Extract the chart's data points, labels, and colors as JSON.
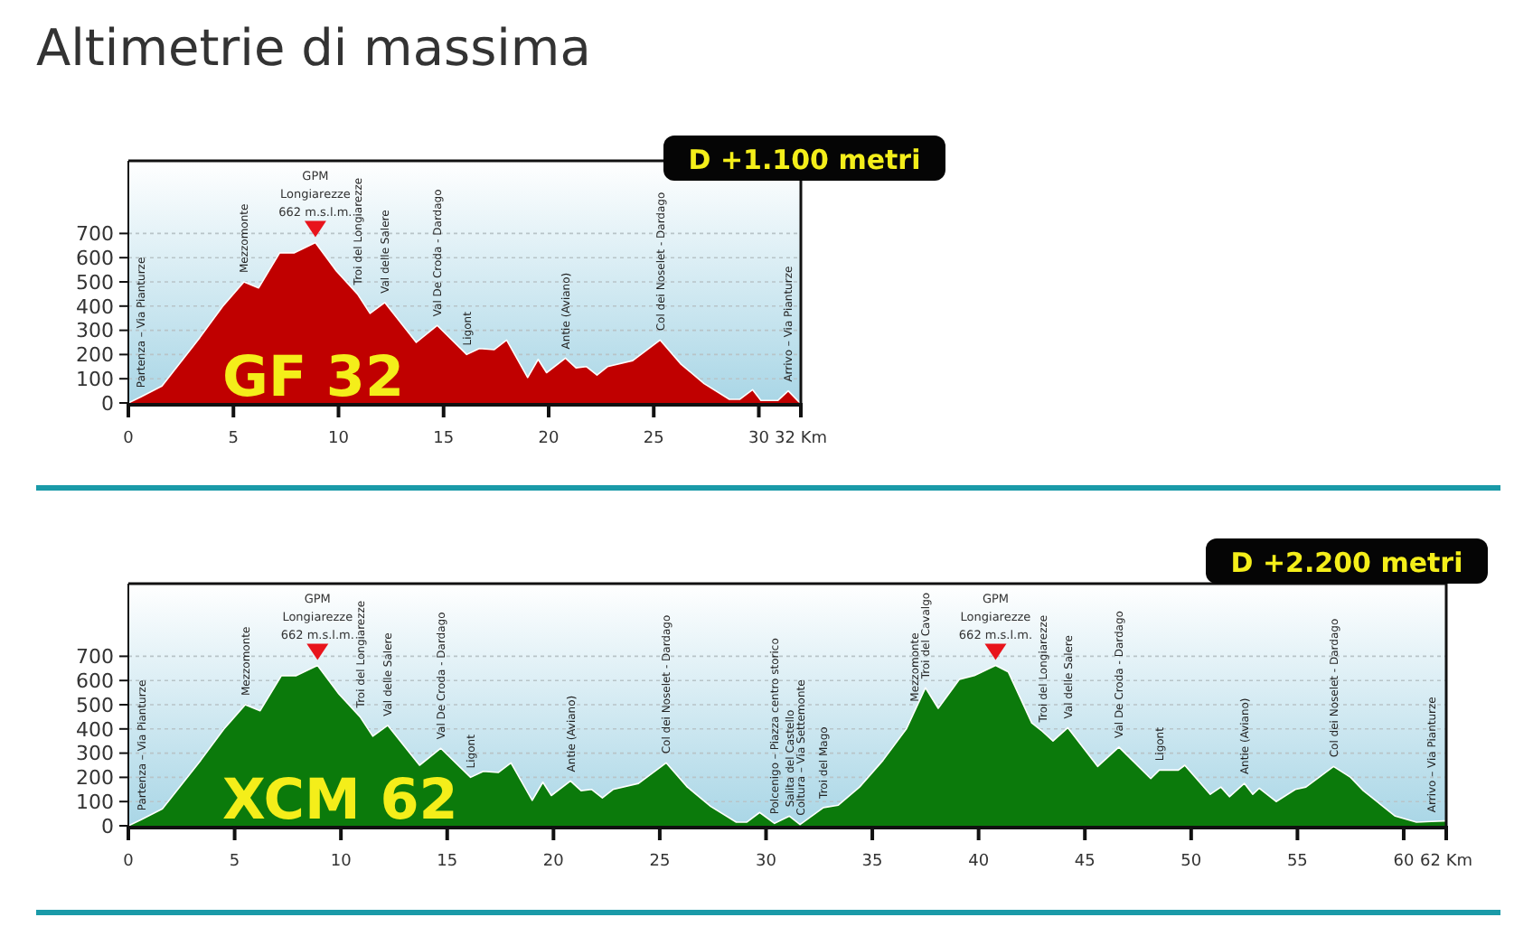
{
  "chart_data": [
    {
      "type": "area",
      "title": "Altimetrie di massima",
      "color": "#c00000",
      "x": [
        0,
        0.6,
        1.6,
        3.4,
        4.5,
        5.5,
        6.2,
        7.2,
        7.9,
        8.9,
        9.9,
        10.9,
        11.5,
        12.2,
        13.7,
        14.7,
        16.1,
        16.7,
        17.4,
        18,
        19,
        19.5,
        19.9,
        20.8,
        21.3,
        21.8,
        22.3,
        22.8,
        24,
        25.3,
        26.3,
        27.4,
        28.6,
        29.1,
        29.7,
        30.1,
        30.9,
        31.4,
        31.9,
        32
      ],
      "values": [
        0,
        25,
        70,
        270,
        400,
        500,
        475,
        620,
        620,
        662,
        545,
        450,
        370,
        415,
        250,
        320,
        200,
        225,
        220,
        260,
        105,
        180,
        125,
        185,
        145,
        150,
        115,
        150,
        175,
        260,
        160,
        80,
        15,
        15,
        55,
        10,
        10,
        50,
        5,
        0
      ],
      "xlim": [
        0,
        32
      ],
      "xticks": [
        0,
        5,
        10,
        15,
        20,
        25,
        30,
        {
          "value": 32,
          "label": "32 Km"
        }
      ],
      "ylim": [
        0,
        1000
      ],
      "yticks": [
        0,
        100,
        200,
        300,
        400,
        500,
        600,
        700
      ],
      "grid": "y",
      "annotations": [
        "D +1.100 metri",
        "GF 32",
        {
          "text": "Partenza – Via Pianturze",
          "x": 0.6,
          "y": 25
        },
        {
          "text": "Mezzomonte",
          "x": 5.5,
          "y": 500
        },
        {
          "text": "GPM\nLongiarezze\n662 m.s.l.m.",
          "x": 8.9,
          "y": 662
        },
        {
          "text": "Troi del Longiarezze",
          "x": 10.9,
          "y": 450
        },
        {
          "text": "Val delle Salere",
          "x": 12.2,
          "y": 415
        },
        {
          "text": "Val De Croda - Dardago",
          "x": 14.7,
          "y": 320
        },
        {
          "text": "Ligont",
          "x": 16.1,
          "y": 200
        },
        {
          "text": "Antie (Aviano)",
          "x": 20.8,
          "y": 185
        },
        {
          "text": "Col dei Noselet - Dardago",
          "x": 25.3,
          "y": 260
        },
        {
          "text": "Arrivo – Via Pianturze",
          "x": 31.4,
          "y": 50
        }
      ]
    },
    {
      "type": "area",
      "color": "#0b7a0b",
      "x": [
        0,
        0.6,
        1.6,
        3.4,
        4.5,
        5.5,
        6.2,
        7.2,
        7.9,
        8.9,
        9.9,
        10.9,
        11.5,
        12.2,
        13.7,
        14.7,
        16.1,
        16.7,
        17.4,
        18,
        19,
        19.5,
        19.9,
        20.8,
        21.3,
        21.8,
        22.3,
        22.8,
        24,
        25.3,
        26.3,
        27.4,
        28.6,
        29.1,
        29.7,
        30.4,
        31.1,
        31.6,
        32.7,
        33.4,
        34.4,
        35.5,
        36.6,
        37.0,
        37.5,
        38.1,
        39.1,
        39.8,
        40.8,
        41.4,
        42.5,
        43.0,
        43.5,
        44.2,
        45.6,
        46.6,
        48.1,
        48.5,
        49.4,
        49.7,
        50.9,
        51.4,
        51.8,
        52.5,
        52.9,
        53.2,
        54,
        54.9,
        55.4,
        56.7,
        57.5,
        58.1,
        59.6,
        60.6,
        61.3,
        61.9,
        62
      ],
      "values": [
        0,
        25,
        70,
        270,
        400,
        500,
        475,
        620,
        620,
        662,
        545,
        450,
        370,
        415,
        250,
        320,
        200,
        225,
        220,
        260,
        105,
        180,
        125,
        185,
        145,
        150,
        115,
        150,
        175,
        260,
        160,
        80,
        15,
        15,
        55,
        10,
        40,
        5,
        75,
        85,
        160,
        270,
        400,
        475,
        570,
        485,
        605,
        620,
        662,
        635,
        425,
        390,
        350,
        405,
        245,
        325,
        195,
        230,
        230,
        250,
        130,
        160,
        120,
        175,
        130,
        155,
        100,
        150,
        160,
        245,
        200,
        145,
        40,
        15,
        18,
        20,
        20
      ],
      "xlim": [
        0,
        62
      ],
      "xticks": [
        0,
        5,
        10,
        15,
        20,
        25,
        30,
        35,
        40,
        45,
        50,
        55,
        60,
        {
          "value": 62,
          "label": "62 Km"
        }
      ],
      "ylim": [
        0,
        1000
      ],
      "yticks": [
        0,
        100,
        200,
        300,
        400,
        500,
        600,
        700
      ],
      "grid": "y",
      "annotations": [
        "D +2.200 metri",
        "XCM 62",
        {
          "text": "Partenza – Via Pianturze",
          "x": 0.6,
          "y": 25
        },
        {
          "text": "Mezzomonte",
          "x": 5.5,
          "y": 500
        },
        {
          "text": "GPM\nLongiarezze\n662 m.s.l.m.",
          "x": 8.9,
          "y": 662
        },
        {
          "text": "Troi del Longiarezze",
          "x": 10.9,
          "y": 450
        },
        {
          "text": "Val delle Salere",
          "x": 12.2,
          "y": 415
        },
        {
          "text": "Val De Croda - Dardago",
          "x": 14.7,
          "y": 320
        },
        {
          "text": "Ligont",
          "x": 16.1,
          "y": 200
        },
        {
          "text": "Antie (Aviano)",
          "x": 20.8,
          "y": 185
        },
        {
          "text": "Col dei Noselet - Dardago",
          "x": 25.3,
          "y": 260
        },
        {
          "text": "Polcenigo – Piazza centro storico",
          "x": 30.4,
          "y": 10
        },
        {
          "text": "Salita del Castello",
          "x": 31.1,
          "y": 40
        },
        {
          "text": "Coltura – Via Settemonte",
          "x": 31.6,
          "y": 5
        },
        {
          "text": "Troi del Mago",
          "x": 32.7,
          "y": 75
        },
        {
          "text": "Mezzomonte",
          "x": 37.0,
          "y": 475
        },
        {
          "text": "Troi del Cavalgo",
          "x": 37.5,
          "y": 570
        },
        {
          "text": "GPM\nLongiarezze\n662 m.s.l.m.",
          "x": 40.8,
          "y": 662
        },
        {
          "text": "Troi del Longiarezze",
          "x": 43.0,
          "y": 390
        },
        {
          "text": "Val delle Salere",
          "x": 44.2,
          "y": 405
        },
        {
          "text": "Val De Croda - Dardago",
          "x": 46.6,
          "y": 325
        },
        {
          "text": "Ligont",
          "x": 48.5,
          "y": 230
        },
        {
          "text": "Antie (Aviano)",
          "x": 52.5,
          "y": 175
        },
        {
          "text": "Col dei Noselet - Dardago",
          "x": 56.7,
          "y": 245
        },
        {
          "text": "Arrivo – Via Pianturze",
          "x": 61.3,
          "y": 18
        }
      ]
    }
  ]
}
